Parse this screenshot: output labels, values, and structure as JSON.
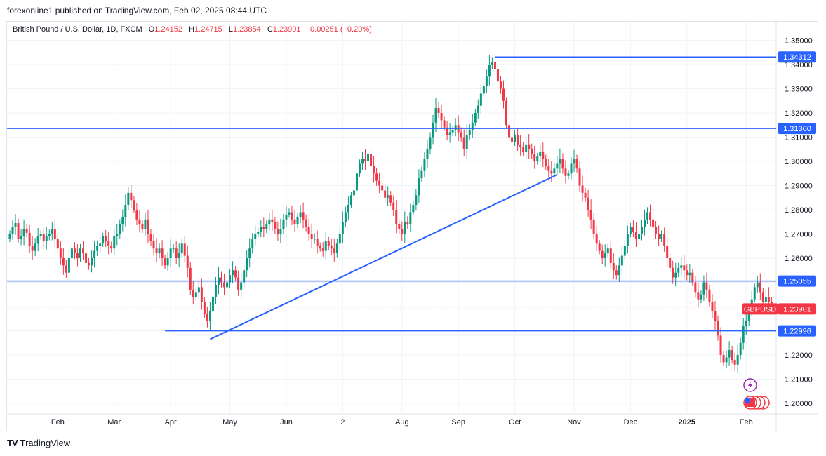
{
  "publisher_line": "forexonline1 published on TradingView.com, Feb 02, 2025 08:44 UTC",
  "legend": {
    "name": "British Pound / U.S. Dollar, 1D, FXCM",
    "o_label": "O",
    "o": "1.24152",
    "h_label": "H",
    "h": "1.24715",
    "l_label": "L",
    "l": "1.23854",
    "c_label": "C",
    "c": "1.23901",
    "change": "−0.00251 (−0.20%)"
  },
  "brand": {
    "logo": "TV",
    "name": "TradingView"
  },
  "colors": {
    "up": "#089981",
    "down": "#f23645",
    "line": "#2962ff",
    "grid": "#f0f3fa",
    "axis_text": "#131722",
    "price_tag": "#f23645"
  },
  "chart_data": {
    "type": "candlestick",
    "title": "British Pound / U.S. Dollar, 1D, FXCM",
    "symbol": "GBPUSD",
    "current_price": "1.23901",
    "ylim": [
      1.195,
      1.357
    ],
    "y_ticks": [
      "1.20000",
      "1.21000",
      "1.22000",
      "1.23000",
      "1.24000",
      "1.25000",
      "1.26000",
      "1.27000",
      "1.28000",
      "1.29000",
      "1.30000",
      "1.31000",
      "1.32000",
      "1.33000",
      "1.34000",
      "1.35000"
    ],
    "x_ticks": [
      {
        "label": "Feb",
        "i": 17
      },
      {
        "label": "Mar",
        "i": 37
      },
      {
        "label": "Apr",
        "i": 57
      },
      {
        "label": "May",
        "i": 78
      },
      {
        "label": "Jun",
        "i": 98
      },
      {
        "label": "2",
        "i": 118
      },
      {
        "label": "Aug",
        "i": 139
      },
      {
        "label": "Sep",
        "i": 159
      },
      {
        "label": "Oct",
        "i": 179
      },
      {
        "label": "Nov",
        "i": 200
      },
      {
        "label": "Dec",
        "i": 220
      },
      {
        "label": "2025",
        "i": 240
      },
      {
        "label": "Feb",
        "i": 261
      }
    ],
    "horizontal_levels": [
      {
        "price": 1.34312,
        "label": "1.34312",
        "from_i": 172
      },
      {
        "price": 1.3136,
        "label": "1.31360",
        "from_i": 0
      },
      {
        "price": 1.25055,
        "label": "1.25055",
        "from_i": 0
      },
      {
        "price": 1.22996,
        "label": "1.22996",
        "from_i": 55
      }
    ],
    "trendline": {
      "from": {
        "i": 71,
        "price": 1.2265
      },
      "to": {
        "i": 194,
        "price": 1.2945
      }
    },
    "closes": [
      1.27,
      1.273,
      1.2745,
      1.268,
      1.269,
      1.272,
      1.2705,
      1.265,
      1.263,
      1.266,
      1.269,
      1.27,
      1.267,
      1.269,
      1.27,
      1.272,
      1.268,
      1.264,
      1.26,
      1.257,
      1.254,
      1.26,
      1.264,
      1.262,
      1.26,
      1.264,
      1.262,
      1.258,
      1.257,
      1.26,
      1.263,
      1.265,
      1.266,
      1.269,
      1.267,
      1.265,
      1.264,
      1.269,
      1.27,
      1.274,
      1.277,
      1.282,
      1.287,
      1.284,
      1.28,
      1.276,
      1.274,
      1.272,
      1.276,
      1.27,
      1.267,
      1.264,
      1.262,
      1.264,
      1.26,
      1.257,
      1.26,
      1.264,
      1.264,
      1.26,
      1.262,
      1.266,
      1.261,
      1.256,
      1.247,
      1.244,
      1.246,
      1.248,
      1.242,
      1.237,
      1.234,
      1.238,
      1.244,
      1.249,
      1.252,
      1.25,
      1.248,
      1.25,
      1.253,
      1.255,
      1.252,
      1.247,
      1.25,
      1.255,
      1.26,
      1.264,
      1.268,
      1.27,
      1.271,
      1.273,
      1.272,
      1.274,
      1.276,
      1.275,
      1.272,
      1.27,
      1.272,
      1.276,
      1.278,
      1.279,
      1.276,
      1.274,
      1.277,
      1.279,
      1.276,
      1.273,
      1.27,
      1.268,
      1.268,
      1.265,
      1.264,
      1.263,
      1.267,
      1.265,
      1.264,
      1.262,
      1.266,
      1.27,
      1.275,
      1.279,
      1.282,
      1.286,
      1.288,
      1.295,
      1.299,
      1.301,
      1.3,
      1.303,
      1.298,
      1.295,
      1.292,
      1.29,
      1.288,
      1.285,
      1.286,
      1.283,
      1.28,
      1.274,
      1.272,
      1.27,
      1.275,
      1.274,
      1.279,
      1.282,
      1.286,
      1.293,
      1.296,
      1.301,
      1.305,
      1.31,
      1.316,
      1.322,
      1.32,
      1.317,
      1.314,
      1.311,
      1.312,
      1.313,
      1.315,
      1.312,
      1.31,
      1.305,
      1.311,
      1.313,
      1.316,
      1.32,
      1.323,
      1.328,
      1.331,
      1.335,
      1.34,
      1.341,
      1.338,
      1.333,
      1.33,
      1.325,
      1.315,
      1.31,
      1.308,
      1.311,
      1.307,
      1.306,
      1.304,
      1.307,
      1.305,
      1.303,
      1.3,
      1.302,
      1.304,
      1.301,
      1.298,
      1.296,
      1.295,
      1.297,
      1.299,
      1.301,
      1.297,
      1.294,
      1.295,
      1.299,
      1.301,
      1.297,
      1.29,
      1.287,
      1.285,
      1.28,
      1.276,
      1.27,
      1.266,
      1.263,
      1.26,
      1.262,
      1.264,
      1.258,
      1.255,
      1.253,
      1.257,
      1.261,
      1.265,
      1.27,
      1.273,
      1.271,
      1.268,
      1.27,
      1.273,
      1.276,
      1.279,
      1.276,
      1.273,
      1.27,
      1.268,
      1.27,
      1.265,
      1.26,
      1.256,
      1.252,
      1.254,
      1.256,
      1.257,
      1.255,
      1.253,
      1.254,
      1.25,
      1.246,
      1.243,
      1.245,
      1.25,
      1.247,
      1.242,
      1.238,
      1.234,
      1.228,
      1.22,
      1.217,
      1.219,
      1.222,
      1.218,
      1.216,
      1.22,
      1.225,
      1.232,
      1.234,
      1.239,
      1.243,
      1.248,
      1.25,
      1.246,
      1.242,
      1.244,
      1.242,
      1.239
    ]
  },
  "price_axis_labels": {
    "symbol_tag": "GBPUSD",
    "current_tag": "1.23901"
  }
}
